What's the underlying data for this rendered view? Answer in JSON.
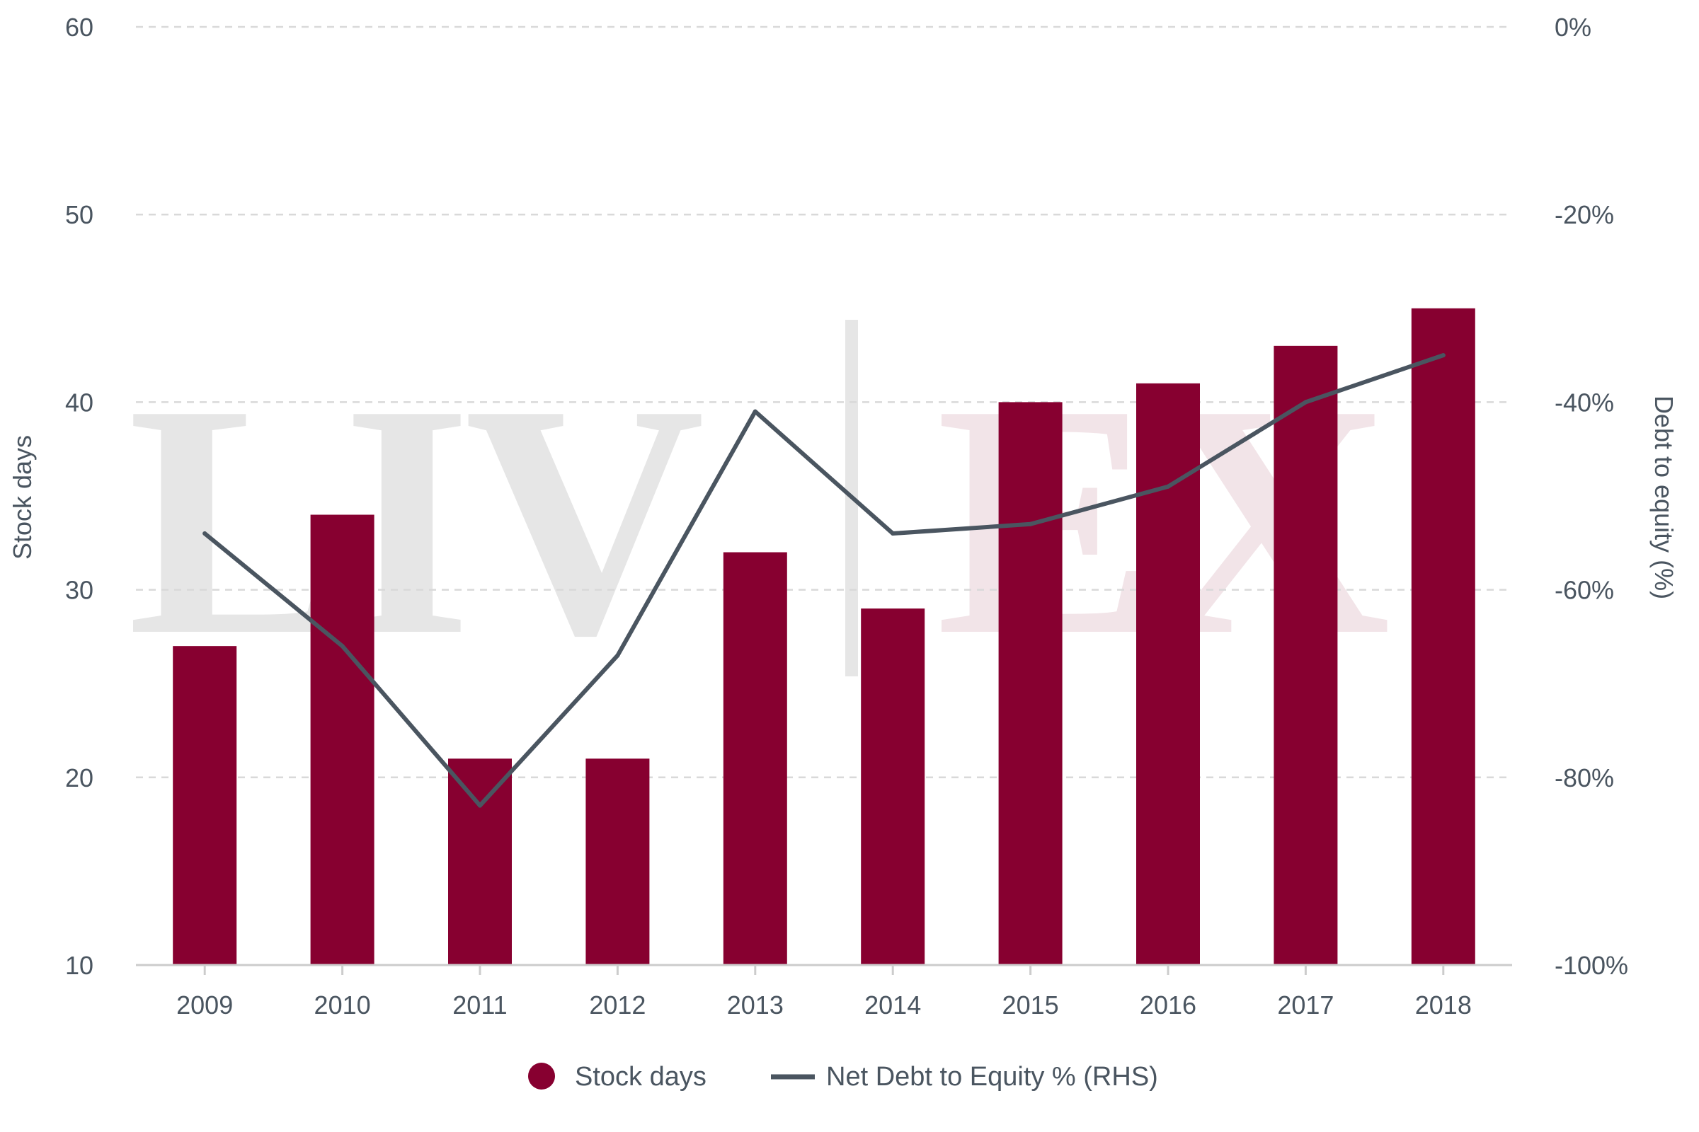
{
  "chart_data": {
    "type": "bar",
    "categories": [
      "2009",
      "2010",
      "2011",
      "2012",
      "2013",
      "2014",
      "2015",
      "2016",
      "2017",
      "2018"
    ],
    "series": [
      {
        "name": "Stock days",
        "type": "bar",
        "axis": "left",
        "color": "#870030",
        "values": [
          27,
          34,
          21,
          21,
          32,
          29,
          40,
          41,
          43,
          45
        ]
      },
      {
        "name": "Net Debt to Equity % (RHS)",
        "type": "line",
        "axis": "right",
        "color": "#4a5560",
        "values": [
          -54,
          -66,
          -83,
          -67,
          -41,
          -54,
          -53,
          -49,
          -40,
          -35
        ]
      }
    ],
    "ylabel": "Stock days",
    "y2label": "Debt to equity (%)",
    "ylim": [
      10,
      60
    ],
    "y2lim": [
      -100,
      0
    ],
    "yticks": [
      "10",
      "20",
      "30",
      "40",
      "50",
      "60"
    ],
    "y2ticks": [
      "-100%",
      "-80%",
      "-60%",
      "-40%",
      "-20%",
      "0%"
    ],
    "grid": true,
    "legend_position": "bottom-center"
  },
  "watermark": {
    "text_left": "LIV",
    "text_right": "EX",
    "color_left": "#e6e6e6",
    "color_right": "#f2e4e8"
  },
  "colors": {
    "bar": "#870030",
    "line": "#4a5560",
    "grid": "#d9d9d9",
    "axis": "#cccccc",
    "text": "#4a5560"
  }
}
